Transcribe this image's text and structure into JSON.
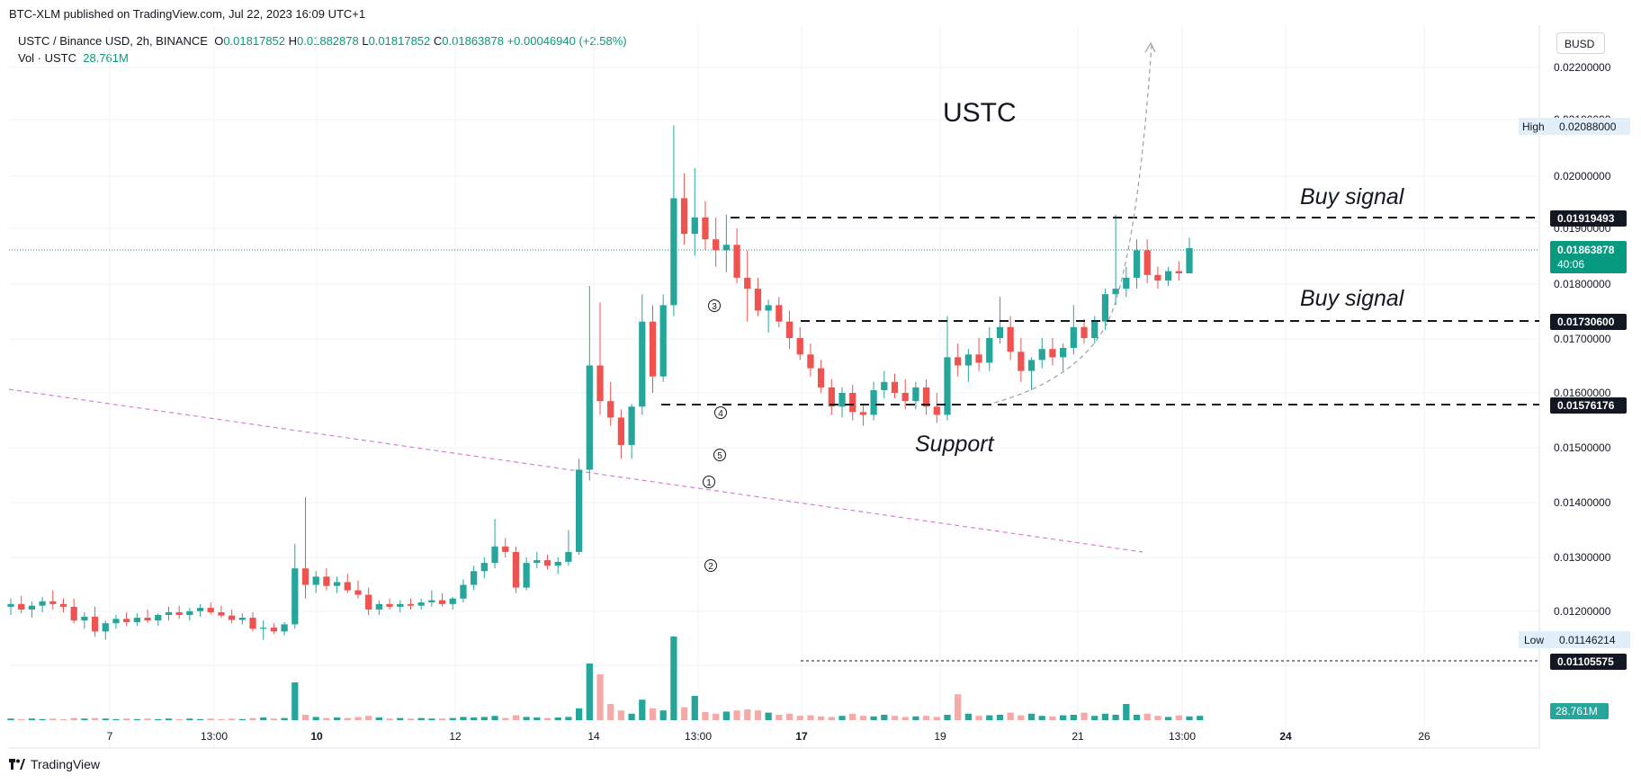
{
  "header": {
    "published": "BTC-XLM published on TradingView.com, Jul 22, 2023 16:09 UTC+1",
    "symbol": "USTC / Binance USD, 2h, BINANCE",
    "o_label": "O",
    "o_val": "0.01817852",
    "h_label": "H",
    "h_val": "0.01882878",
    "l_label": "L",
    "l_val": "0.01817852",
    "c_label": "C",
    "c_val": "0.01863878",
    "change": "+0.00046940 (+2.58%)",
    "vol_label": "Vol · USTC",
    "vol_val": "28.761M"
  },
  "currency_button": "BUSD",
  "footer": {
    "brand": "TradingView"
  },
  "annotations": {
    "title": "USTC",
    "buy_signal_1": "Buy signal",
    "buy_signal_2": "Buy signal",
    "support": "Support",
    "markers": [
      "1",
      "2",
      "3",
      "4",
      "5"
    ]
  },
  "price_axis": {
    "ticks": [
      "0.02200000",
      "0.02100000",
      "0.02000000",
      "0.01900000",
      "0.01800000",
      "0.01700000",
      "0.01600000",
      "0.01500000",
      "0.01400000",
      "0.01300000",
      "0.01200000"
    ],
    "high_label": "High",
    "high_val": "0.02088000",
    "low_label": "Low",
    "low_val": "0.01146214",
    "level_1": "0.01919493",
    "level_2": "0.01730600",
    "level_3": "0.01576176",
    "level_4": "0.01105575",
    "last_price": "0.01863878",
    "countdown": "40:06",
    "vol_badge": "28.761M"
  },
  "time_axis": {
    "ticks": [
      "7",
      "13:00",
      "10",
      "12",
      "14",
      "13:00",
      "17",
      "19",
      "21",
      "13:00",
      "24",
      "26"
    ]
  },
  "colors": {
    "up": "#26a69a",
    "down": "#ef5350",
    "vol_up": "#26a69a",
    "vol_down": "#f7a9a7",
    "trend": "#d77fd7",
    "last_line": "#089981"
  },
  "chart_data": {
    "type": "candlestick",
    "symbol": "USTC / Binance USD, 2h, BINANCE",
    "y_range": [
      0.0105,
      0.0225
    ],
    "levels": [
      0.01919493,
      0.017306,
      0.01576176,
      0.01105575
    ],
    "candles": [
      {
        "o": 0.0121,
        "h": 0.01225,
        "l": 0.01195,
        "c": 0.01215
      },
      {
        "o": 0.01215,
        "h": 0.0123,
        "l": 0.01198,
        "c": 0.01205
      },
      {
        "o": 0.01205,
        "h": 0.0122,
        "l": 0.0119,
        "c": 0.01212
      },
      {
        "o": 0.01212,
        "h": 0.01228,
        "l": 0.012,
        "c": 0.0122
      },
      {
        "o": 0.0122,
        "h": 0.0124,
        "l": 0.01205,
        "c": 0.01215
      },
      {
        "o": 0.01215,
        "h": 0.01225,
        "l": 0.012,
        "c": 0.0121
      },
      {
        "o": 0.0121,
        "h": 0.01225,
        "l": 0.0118,
        "c": 0.01185
      },
      {
        "o": 0.01185,
        "h": 0.012,
        "l": 0.0117,
        "c": 0.01192
      },
      {
        "o": 0.01192,
        "h": 0.0121,
        "l": 0.01155,
        "c": 0.01165
      },
      {
        "o": 0.01165,
        "h": 0.01185,
        "l": 0.0115,
        "c": 0.0118
      },
      {
        "o": 0.0118,
        "h": 0.01195,
        "l": 0.0117,
        "c": 0.01188
      },
      {
        "o": 0.01188,
        "h": 0.012,
        "l": 0.01175,
        "c": 0.01182
      },
      {
        "o": 0.01182,
        "h": 0.01198,
        "l": 0.01175,
        "c": 0.0119
      },
      {
        "o": 0.0119,
        "h": 0.01205,
        "l": 0.0118,
        "c": 0.01185
      },
      {
        "o": 0.01185,
        "h": 0.01198,
        "l": 0.01175,
        "c": 0.01195
      },
      {
        "o": 0.01195,
        "h": 0.0121,
        "l": 0.01185,
        "c": 0.012
      },
      {
        "o": 0.012,
        "h": 0.01212,
        "l": 0.01188,
        "c": 0.01195
      },
      {
        "o": 0.01195,
        "h": 0.01208,
        "l": 0.01185,
        "c": 0.01202
      },
      {
        "o": 0.01202,
        "h": 0.01215,
        "l": 0.01192,
        "c": 0.01208
      },
      {
        "o": 0.01208,
        "h": 0.01218,
        "l": 0.01196,
        "c": 0.012
      },
      {
        "o": 0.012,
        "h": 0.01212,
        "l": 0.0119,
        "c": 0.01194
      },
      {
        "o": 0.01194,
        "h": 0.01205,
        "l": 0.0118,
        "c": 0.01186
      },
      {
        "o": 0.01186,
        "h": 0.01198,
        "l": 0.01178,
        "c": 0.0119
      },
      {
        "o": 0.0119,
        "h": 0.012,
        "l": 0.01165,
        "c": 0.0117
      },
      {
        "o": 0.0117,
        "h": 0.01185,
        "l": 0.0115,
        "c": 0.01172
      },
      {
        "o": 0.01172,
        "h": 0.0118,
        "l": 0.0116,
        "c": 0.01165
      },
      {
        "o": 0.01165,
        "h": 0.01182,
        "l": 0.01158,
        "c": 0.01178
      },
      {
        "o": 0.01178,
        "h": 0.01325,
        "l": 0.0117,
        "c": 0.0128
      },
      {
        "o": 0.0128,
        "h": 0.0141,
        "l": 0.01225,
        "c": 0.0125
      },
      {
        "o": 0.0125,
        "h": 0.01275,
        "l": 0.01235,
        "c": 0.01265
      },
      {
        "o": 0.01265,
        "h": 0.0128,
        "l": 0.0124,
        "c": 0.01248
      },
      {
        "o": 0.01248,
        "h": 0.01265,
        "l": 0.01235,
        "c": 0.01255
      },
      {
        "o": 0.01255,
        "h": 0.0127,
        "l": 0.01235,
        "c": 0.0124
      },
      {
        "o": 0.0124,
        "h": 0.01258,
        "l": 0.01225,
        "c": 0.01232
      },
      {
        "o": 0.01232,
        "h": 0.01245,
        "l": 0.01195,
        "c": 0.01205
      },
      {
        "o": 0.01205,
        "h": 0.01222,
        "l": 0.01195,
        "c": 0.01215
      },
      {
        "o": 0.01215,
        "h": 0.01225,
        "l": 0.01205,
        "c": 0.0121
      },
      {
        "o": 0.0121,
        "h": 0.01222,
        "l": 0.012,
        "c": 0.01215
      },
      {
        "o": 0.01215,
        "h": 0.01225,
        "l": 0.01205,
        "c": 0.01212
      },
      {
        "o": 0.01212,
        "h": 0.01225,
        "l": 0.01205,
        "c": 0.01218
      },
      {
        "o": 0.01218,
        "h": 0.0124,
        "l": 0.0121,
        "c": 0.01222
      },
      {
        "o": 0.01222,
        "h": 0.01235,
        "l": 0.0121,
        "c": 0.01215
      },
      {
        "o": 0.01215,
        "h": 0.01228,
        "l": 0.01205,
        "c": 0.01225
      },
      {
        "o": 0.01225,
        "h": 0.0126,
        "l": 0.01218,
        "c": 0.0125
      },
      {
        "o": 0.0125,
        "h": 0.01285,
        "l": 0.0124,
        "c": 0.01275
      },
      {
        "o": 0.01275,
        "h": 0.013,
        "l": 0.01262,
        "c": 0.0129
      },
      {
        "o": 0.0129,
        "h": 0.0137,
        "l": 0.0128,
        "c": 0.0132
      },
      {
        "o": 0.0132,
        "h": 0.01335,
        "l": 0.013,
        "c": 0.0131
      },
      {
        "o": 0.0131,
        "h": 0.0132,
        "l": 0.01235,
        "c": 0.01245
      },
      {
        "o": 0.01245,
        "h": 0.013,
        "l": 0.0124,
        "c": 0.0129
      },
      {
        "o": 0.0129,
        "h": 0.0131,
        "l": 0.0128,
        "c": 0.01295
      },
      {
        "o": 0.01295,
        "h": 0.01305,
        "l": 0.01278,
        "c": 0.01285
      },
      {
        "o": 0.01285,
        "h": 0.013,
        "l": 0.0127,
        "c": 0.01292
      },
      {
        "o": 0.01292,
        "h": 0.0135,
        "l": 0.01285,
        "c": 0.0131
      },
      {
        "o": 0.0131,
        "h": 0.0148,
        "l": 0.01305,
        "c": 0.0146
      },
      {
        "o": 0.0146,
        "h": 0.01795,
        "l": 0.0144,
        "c": 0.0165
      },
      {
        "o": 0.0165,
        "h": 0.01765,
        "l": 0.0156,
        "c": 0.01585
      },
      {
        "o": 0.01585,
        "h": 0.0162,
        "l": 0.0154,
        "c": 0.01555
      },
      {
        "o": 0.01555,
        "h": 0.0157,
        "l": 0.0148,
        "c": 0.01505
      },
      {
        "o": 0.01505,
        "h": 0.0158,
        "l": 0.0148,
        "c": 0.01575
      },
      {
        "o": 0.01575,
        "h": 0.0178,
        "l": 0.0156,
        "c": 0.0173
      },
      {
        "o": 0.0173,
        "h": 0.0176,
        "l": 0.016,
        "c": 0.0163
      },
      {
        "o": 0.0163,
        "h": 0.0178,
        "l": 0.0162,
        "c": 0.0176
      },
      {
        "o": 0.0176,
        "h": 0.02088,
        "l": 0.0174,
        "c": 0.01955
      },
      {
        "o": 0.01955,
        "h": 0.02,
        "l": 0.0187,
        "c": 0.0189
      },
      {
        "o": 0.0189,
        "h": 0.0201,
        "l": 0.0185,
        "c": 0.0192
      },
      {
        "o": 0.0192,
        "h": 0.0195,
        "l": 0.0186,
        "c": 0.0188
      },
      {
        "o": 0.0188,
        "h": 0.0192,
        "l": 0.0183,
        "c": 0.0186
      },
      {
        "o": 0.0186,
        "h": 0.01925,
        "l": 0.0182,
        "c": 0.0187
      },
      {
        "o": 0.0187,
        "h": 0.019,
        "l": 0.018,
        "c": 0.0181
      },
      {
        "o": 0.0181,
        "h": 0.0186,
        "l": 0.0173,
        "c": 0.0179
      },
      {
        "o": 0.0179,
        "h": 0.0181,
        "l": 0.0174,
        "c": 0.0175
      },
      {
        "o": 0.0175,
        "h": 0.0177,
        "l": 0.0171,
        "c": 0.0176
      },
      {
        "o": 0.0176,
        "h": 0.01775,
        "l": 0.0172,
        "c": 0.0173
      },
      {
        "o": 0.0173,
        "h": 0.0175,
        "l": 0.0168,
        "c": 0.017
      },
      {
        "o": 0.017,
        "h": 0.0172,
        "l": 0.0166,
        "c": 0.0167
      },
      {
        "o": 0.0167,
        "h": 0.0169,
        "l": 0.0163,
        "c": 0.01645
      },
      {
        "o": 0.01645,
        "h": 0.0166,
        "l": 0.016,
        "c": 0.0161
      },
      {
        "o": 0.0161,
        "h": 0.01625,
        "l": 0.0156,
        "c": 0.01575
      },
      {
        "o": 0.01575,
        "h": 0.0161,
        "l": 0.01555,
        "c": 0.016
      },
      {
        "o": 0.016,
        "h": 0.01615,
        "l": 0.0155,
        "c": 0.01565
      },
      {
        "o": 0.01565,
        "h": 0.0158,
        "l": 0.0154,
        "c": 0.0156
      },
      {
        "o": 0.0156,
        "h": 0.0162,
        "l": 0.0155,
        "c": 0.01605
      },
      {
        "o": 0.01605,
        "h": 0.0164,
        "l": 0.0159,
        "c": 0.0162
      },
      {
        "o": 0.0162,
        "h": 0.01635,
        "l": 0.0159,
        "c": 0.016
      },
      {
        "o": 0.016,
        "h": 0.01625,
        "l": 0.0157,
        "c": 0.01585
      },
      {
        "o": 0.01585,
        "h": 0.0162,
        "l": 0.0157,
        "c": 0.0161
      },
      {
        "o": 0.0161,
        "h": 0.01625,
        "l": 0.0156,
        "c": 0.01575
      },
      {
        "o": 0.01575,
        "h": 0.016,
        "l": 0.01545,
        "c": 0.0156
      },
      {
        "o": 0.0156,
        "h": 0.0174,
        "l": 0.0155,
        "c": 0.01665
      },
      {
        "o": 0.01665,
        "h": 0.0169,
        "l": 0.0163,
        "c": 0.0165
      },
      {
        "o": 0.0165,
        "h": 0.0168,
        "l": 0.0162,
        "c": 0.0167
      },
      {
        "o": 0.0167,
        "h": 0.017,
        "l": 0.0164,
        "c": 0.01655
      },
      {
        "o": 0.01655,
        "h": 0.0172,
        "l": 0.0164,
        "c": 0.017
      },
      {
        "o": 0.017,
        "h": 0.01775,
        "l": 0.0169,
        "c": 0.0172
      },
      {
        "o": 0.0172,
        "h": 0.0174,
        "l": 0.0166,
        "c": 0.01675
      },
      {
        "o": 0.01675,
        "h": 0.017,
        "l": 0.0162,
        "c": 0.0164
      },
      {
        "o": 0.0164,
        "h": 0.01665,
        "l": 0.01605,
        "c": 0.0166
      },
      {
        "o": 0.0166,
        "h": 0.017,
        "l": 0.01645,
        "c": 0.0168
      },
      {
        "o": 0.0168,
        "h": 0.017,
        "l": 0.0165,
        "c": 0.01665
      },
      {
        "o": 0.01665,
        "h": 0.0169,
        "l": 0.0164,
        "c": 0.01682
      },
      {
        "o": 0.01682,
        "h": 0.0176,
        "l": 0.0167,
        "c": 0.0172
      },
      {
        "o": 0.0172,
        "h": 0.01735,
        "l": 0.0169,
        "c": 0.017
      },
      {
        "o": 0.017,
        "h": 0.0174,
        "l": 0.0169,
        "c": 0.0173
      },
      {
        "o": 0.0173,
        "h": 0.0179,
        "l": 0.01715,
        "c": 0.0178
      },
      {
        "o": 0.0178,
        "h": 0.01925,
        "l": 0.0176,
        "c": 0.0179
      },
      {
        "o": 0.0179,
        "h": 0.0183,
        "l": 0.01775,
        "c": 0.0181
      },
      {
        "o": 0.0181,
        "h": 0.0188,
        "l": 0.0179,
        "c": 0.0186
      },
      {
        "o": 0.0186,
        "h": 0.0188,
        "l": 0.018,
        "c": 0.01815
      },
      {
        "o": 0.01815,
        "h": 0.0183,
        "l": 0.0179,
        "c": 0.01805
      },
      {
        "o": 0.01805,
        "h": 0.0183,
        "l": 0.01795,
        "c": 0.01822
      },
      {
        "o": 0.01822,
        "h": 0.0184,
        "l": 0.01805,
        "c": 0.01818
      },
      {
        "o": 0.01818,
        "h": 0.01883,
        "l": 0.01818,
        "c": 0.01864
      }
    ],
    "volumes_m": [
      3,
      2,
      3,
      2,
      3,
      2,
      4,
      3,
      4,
      3,
      2,
      3,
      2,
      3,
      2,
      3,
      2,
      3,
      2,
      3,
      2,
      3,
      2,
      4,
      5,
      3,
      4,
      70,
      10,
      6,
      4,
      5,
      4,
      6,
      8,
      5,
      3,
      4,
      3,
      4,
      3,
      3,
      4,
      6,
      5,
      6,
      8,
      4,
      9,
      6,
      5,
      4,
      5,
      6,
      22,
      105,
      85,
      30,
      18,
      12,
      38,
      22,
      18,
      155,
      24,
      45,
      15,
      12,
      16,
      18,
      20,
      18,
      14,
      10,
      12,
      8,
      9,
      7,
      6,
      8,
      12,
      8,
      7,
      10,
      8,
      6,
      7,
      8,
      6,
      10,
      48,
      12,
      8,
      9,
      10,
      14,
      9,
      12,
      8,
      7,
      9,
      10,
      14,
      8,
      12,
      10,
      30,
      10,
      12,
      8,
      6,
      9,
      7,
      8
    ]
  }
}
